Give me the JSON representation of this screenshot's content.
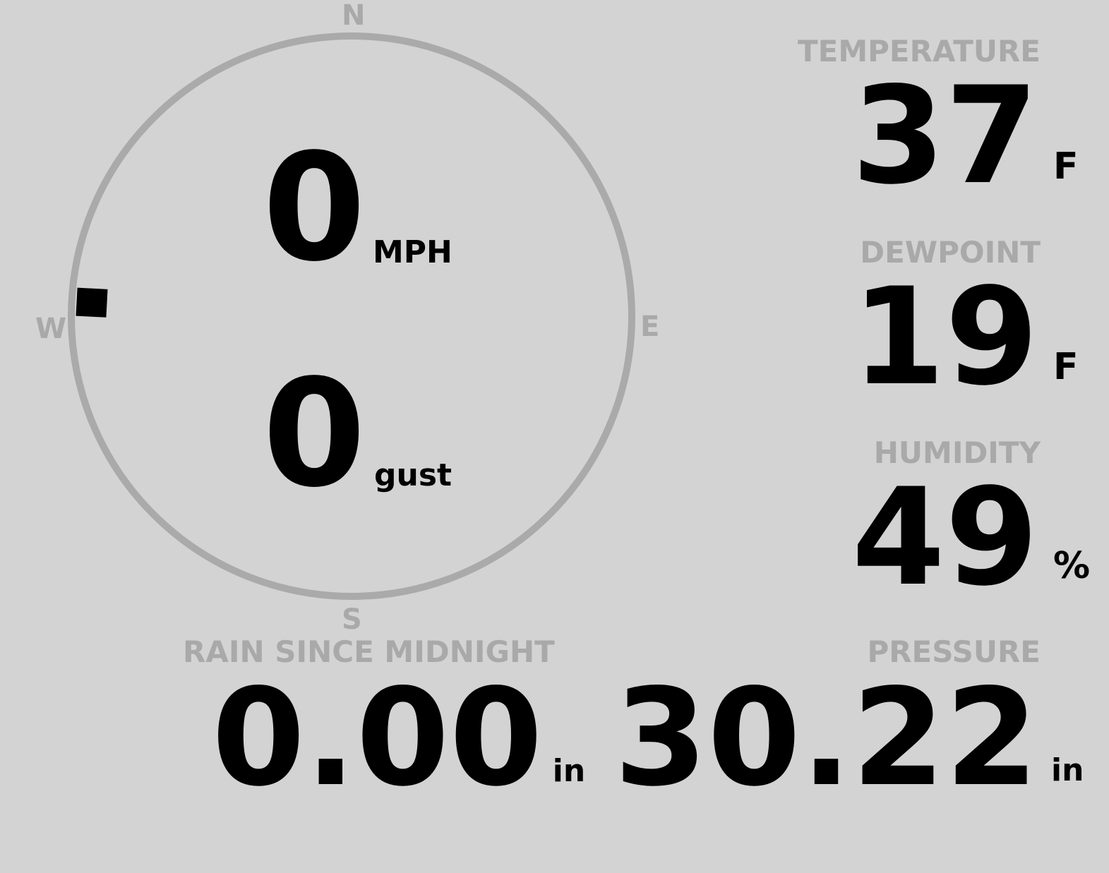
{
  "compass": {
    "north": "N",
    "south": "S",
    "east": "E",
    "west": "W",
    "wind_direction_deg": 273,
    "ring_color": "#aaaaaa"
  },
  "wind": {
    "speed": "0",
    "speed_unit": "MPH",
    "gust": "0",
    "gust_unit": "gust"
  },
  "temperature": {
    "label": "TEMPERATURE",
    "value": "37",
    "unit": "F"
  },
  "dewpoint": {
    "label": "DEWPOINT",
    "value": "19",
    "unit": "F"
  },
  "humidity": {
    "label": "HUMIDITY",
    "value": "49",
    "unit": "%"
  },
  "pressure": {
    "label": "PRESSURE",
    "value": "30.22",
    "unit": "in"
  },
  "rain": {
    "label": "RAIN SINCE MIDNIGHT",
    "value": "0.00",
    "unit": "in"
  },
  "colors": {
    "background": "#d3d3d3",
    "label": "#a9a9a9",
    "value": "#000000"
  }
}
